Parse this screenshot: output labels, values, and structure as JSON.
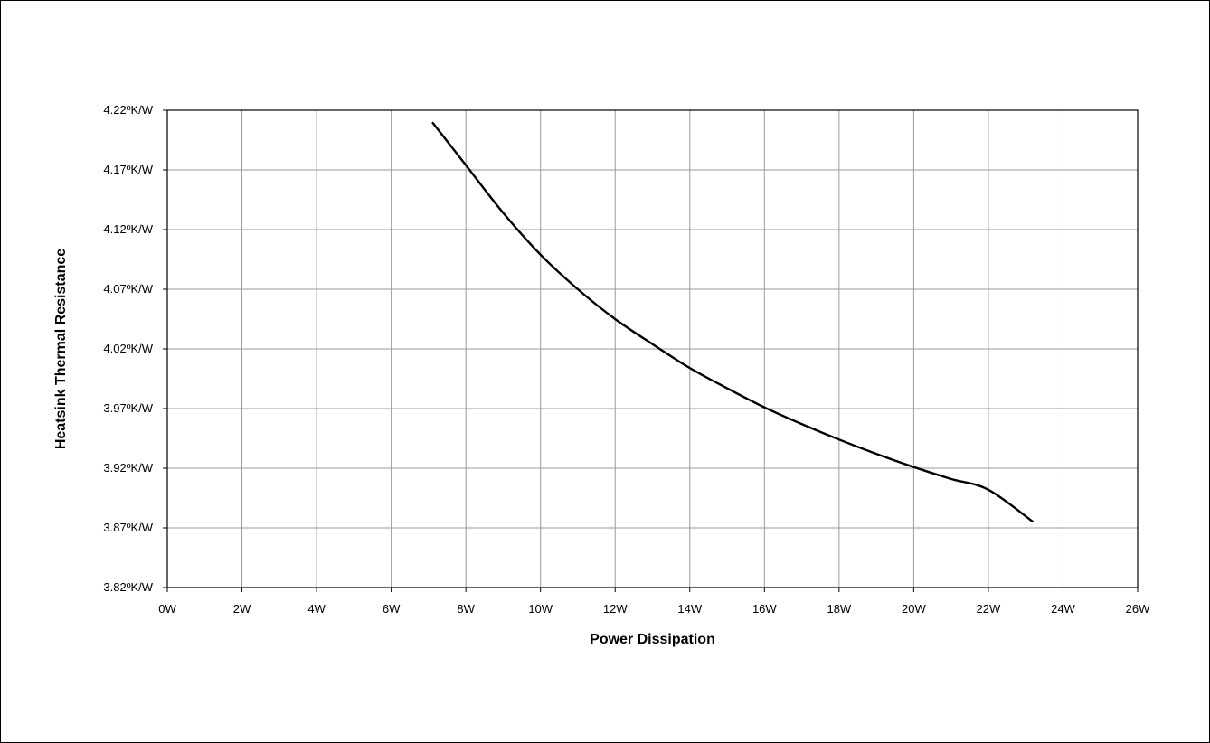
{
  "chart_data": {
    "type": "line",
    "title": "",
    "xlabel": "Power Dissipation",
    "ylabel": "Heatsink Thermal Resistance",
    "xlim": [
      0,
      26
    ],
    "ylim": [
      3.82,
      4.22
    ],
    "x_ticks": [
      0,
      2,
      4,
      6,
      8,
      10,
      12,
      14,
      16,
      18,
      20,
      22,
      24,
      26
    ],
    "x_tick_labels": [
      "0W",
      "2W",
      "4W",
      "6W",
      "8W",
      "10W",
      "12W",
      "14W",
      "16W",
      "18W",
      "20W",
      "22W",
      "24W",
      "26W"
    ],
    "y_ticks": [
      3.82,
      3.87,
      3.92,
      3.97,
      4.02,
      4.07,
      4.12,
      4.17,
      4.22
    ],
    "y_tick_labels": [
      "3.82ºK/W",
      "3.87ºK/W",
      "3.92ºK/W",
      "3.97ºK/W",
      "4.02ºK/W",
      "4.07ºK/W",
      "4.12ºK/W",
      "4.17ºK/W",
      "4.22ºK/W"
    ],
    "grid": true,
    "legend": "none",
    "series": [
      {
        "color": "#000000",
        "x": [
          7.1,
          8.0,
          9.0,
          10.0,
          11.0,
          12.0,
          13.0,
          14.0,
          15.0,
          16.0,
          17.0,
          18.0,
          19.0,
          20.0,
          21.0,
          22.0,
          23.2
        ],
        "y": [
          4.21,
          4.174,
          4.134,
          4.099,
          4.07,
          4.045,
          4.024,
          4.004,
          3.987,
          3.971,
          3.957,
          3.944,
          3.932,
          3.921,
          3.911,
          3.902,
          3.875
        ]
      }
    ]
  }
}
